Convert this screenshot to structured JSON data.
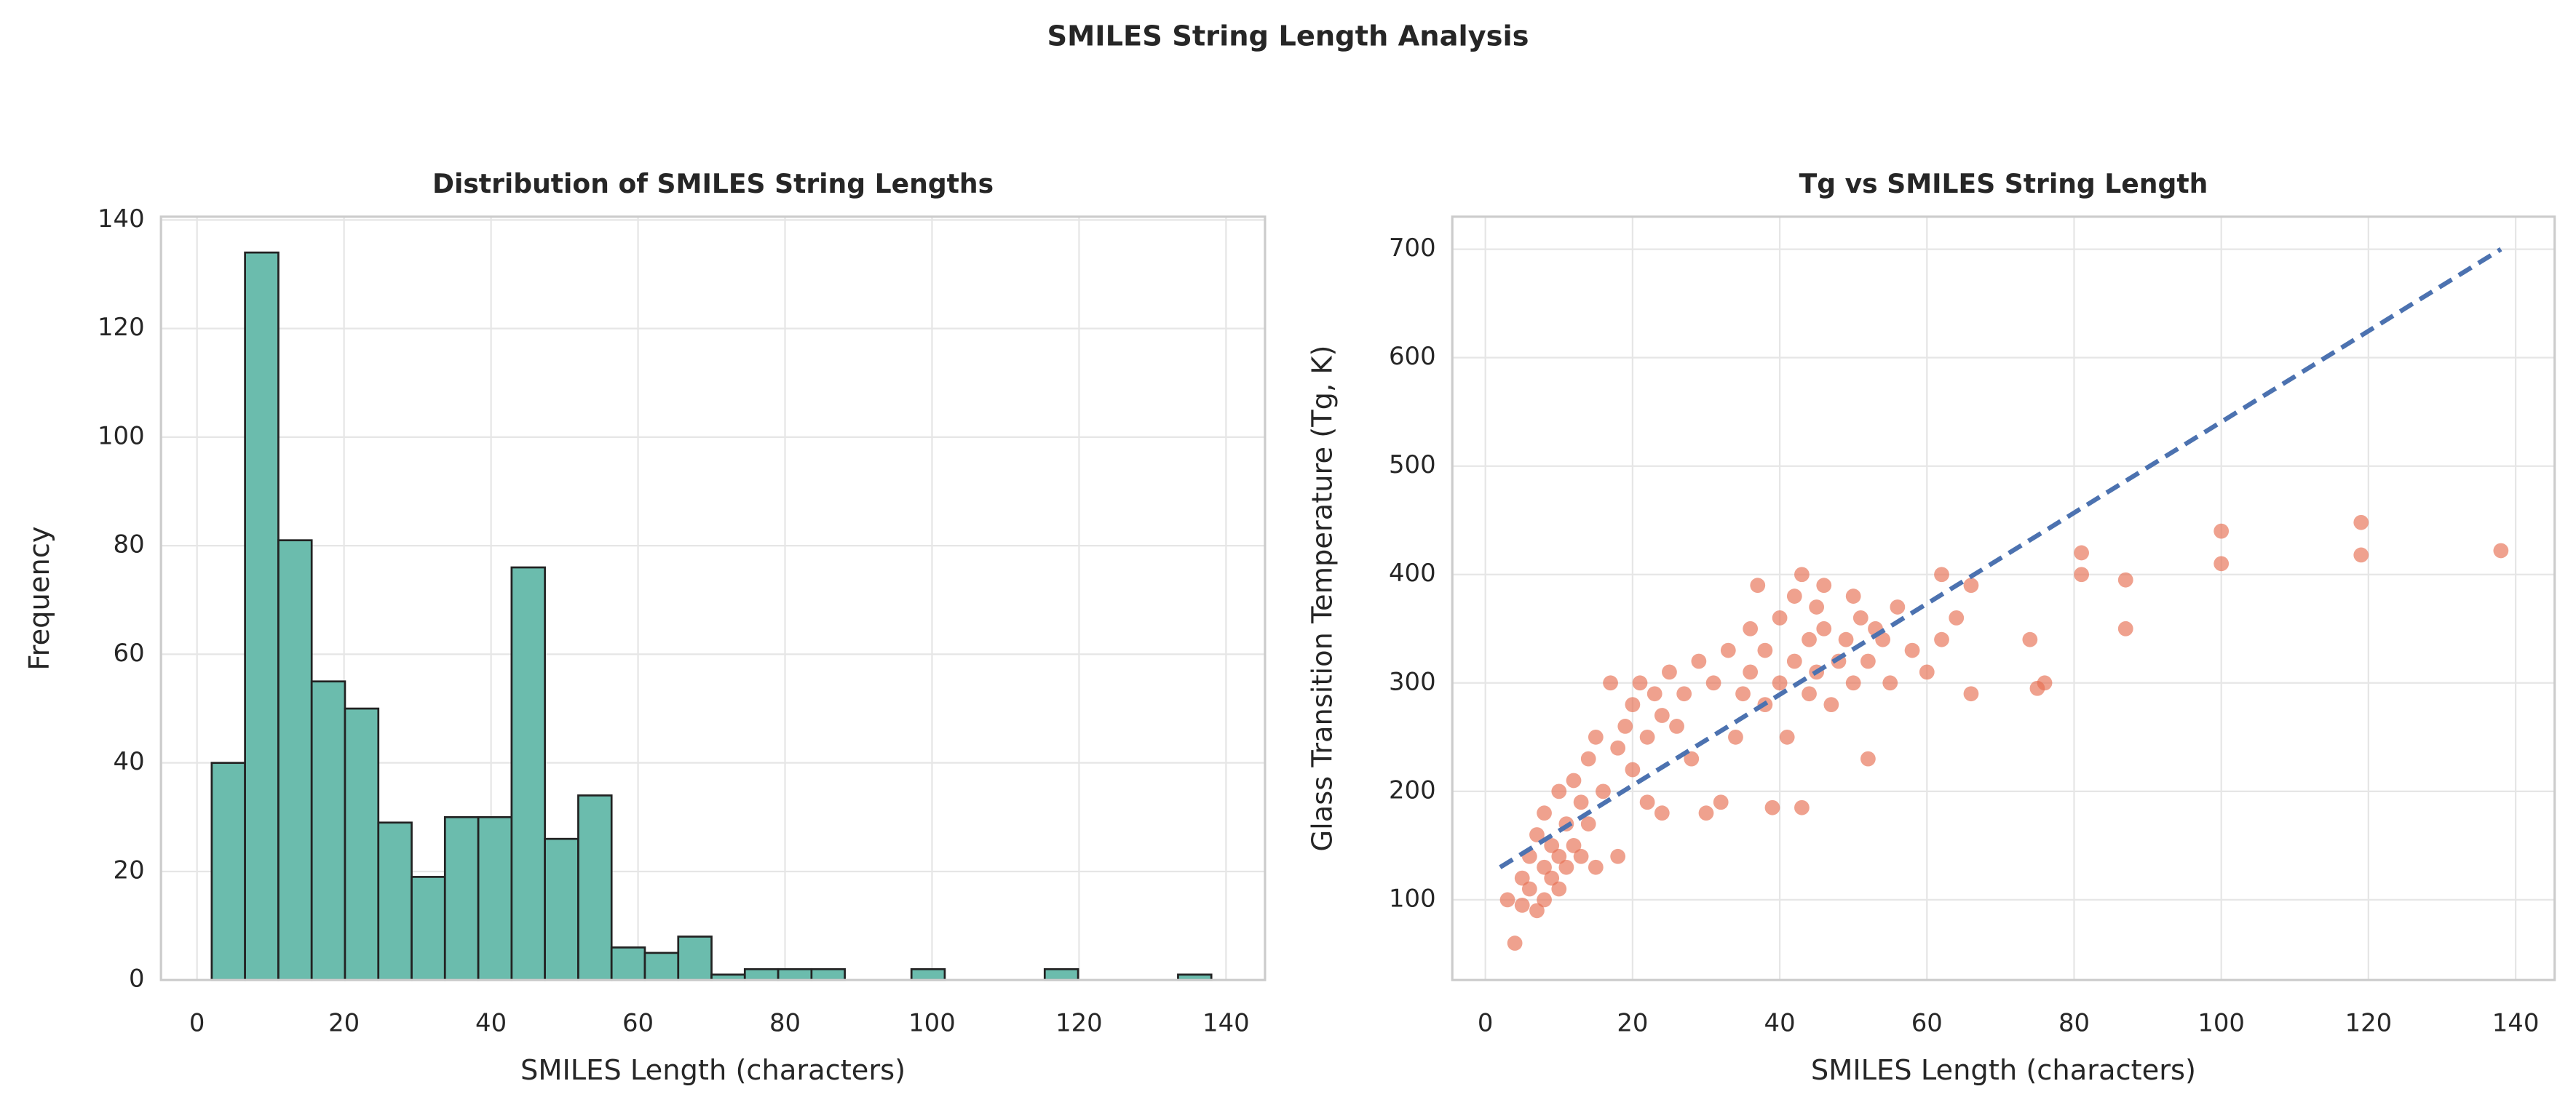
{
  "title": "SMILES String Length Analysis",
  "chart_data": [
    {
      "type": "histogram",
      "title": "Distribution of SMILES String Lengths",
      "x_label": "SMILES Length (characters)",
      "y_label": "Frequency",
      "bins": [
        2,
        6.53,
        11.07,
        15.6,
        20.13,
        24.67,
        29.2,
        33.73,
        38.27,
        42.8,
        47.33,
        51.87,
        56.4,
        60.93,
        65.47,
        70,
        74.53,
        79.07,
        83.6,
        88.13,
        92.67,
        97.2,
        101.73,
        106.27,
        110.8,
        115.33,
        119.87,
        124.4,
        128.93,
        133.47,
        138
      ],
      "counts": [
        40,
        134,
        81,
        55,
        50,
        29,
        19,
        30,
        30,
        76,
        26,
        34,
        6,
        5,
        8,
        1,
        2,
        2,
        2,
        0,
        0,
        2,
        0,
        0,
        0,
        2,
        0,
        0,
        0,
        1
      ],
      "color": "#6bbcad",
      "edge_color": "#222222",
      "xlim": [
        -4.9,
        145.3
      ],
      "ylim": [
        0,
        140.6
      ],
      "xticks": [
        0,
        20,
        40,
        60,
        80,
        100,
        120,
        140
      ],
      "yticks": [
        0,
        20,
        40,
        60,
        80,
        100,
        120,
        140
      ],
      "grid": true
    },
    {
      "type": "scatter",
      "title": "Tg vs SMILES String Length",
      "x_label": "SMILES Length (characters)",
      "y_label": "Glass Transition Temperature (Tg, K)",
      "x": [
        3,
        4,
        5,
        5,
        6,
        6,
        7,
        7,
        8,
        8,
        8,
        9,
        9,
        10,
        10,
        10,
        11,
        11,
        12,
        12,
        13,
        13,
        14,
        14,
        15,
        15,
        16,
        17,
        18,
        18,
        19,
        20,
        20,
        21,
        22,
        22,
        23,
        24,
        24,
        25,
        26,
        27,
        28,
        29,
        30,
        31,
        32,
        33,
        34,
        35,
        36,
        36,
        37,
        38,
        38,
        39,
        40,
        40,
        41,
        42,
        42,
        43,
        43,
        44,
        44,
        45,
        45,
        46,
        46,
        47,
        48,
        49,
        50,
        50,
        51,
        52,
        52,
        53,
        54,
        55,
        56,
        58,
        60,
        62,
        62,
        64,
        66,
        66,
        74,
        75,
        76,
        81,
        81,
        87,
        87,
        100,
        100,
        119,
        119,
        138
      ],
      "values": [
        100,
        60,
        95,
        120,
        110,
        140,
        90,
        160,
        130,
        100,
        180,
        150,
        120,
        200,
        140,
        110,
        170,
        130,
        210,
        150,
        190,
        140,
        230,
        170,
        250,
        130,
        200,
        300,
        240,
        140,
        260,
        280,
        220,
        300,
        250,
        190,
        290,
        270,
        180,
        310,
        260,
        290,
        230,
        320,
        180,
        300,
        190,
        330,
        250,
        290,
        350,
        310,
        390,
        280,
        330,
        185,
        300,
        360,
        250,
        380,
        320,
        185,
        400,
        340,
        290,
        370,
        310,
        350,
        390,
        280,
        320,
        340,
        380,
        300,
        360,
        230,
        320,
        350,
        340,
        300,
        370,
        330,
        310,
        400,
        340,
        360,
        390,
        290,
        340,
        295,
        300,
        420,
        400,
        395,
        350,
        440,
        410,
        448,
        418,
        422
      ],
      "color": "#e76f51",
      "trend": {
        "x": [
          2,
          138
        ],
        "values": [
          130,
          700
        ],
        "color": "#4c72b0",
        "style": "dashed"
      },
      "xlim": [
        -4.5,
        145.3
      ],
      "ylim": [
        26,
        730
      ],
      "xticks": [
        0,
        20,
        40,
        60,
        80,
        100,
        120,
        140
      ],
      "yticks": [
        100,
        200,
        300,
        400,
        500,
        600,
        700
      ],
      "grid": true
    }
  ]
}
